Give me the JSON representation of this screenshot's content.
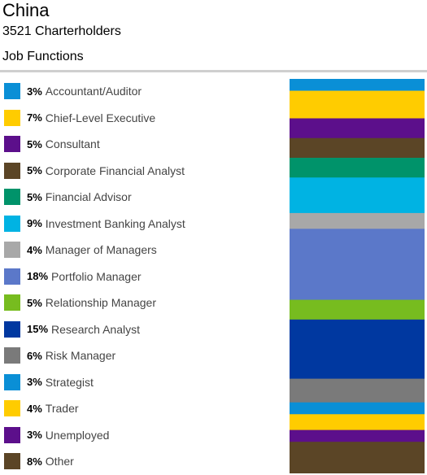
{
  "header": {
    "country": "China",
    "charterholders": "3521 Charterholders",
    "section": "Job Functions"
  },
  "chart_data": {
    "type": "bar",
    "orientation": "stacked-vertical",
    "unit": "%",
    "grid": false,
    "legend": "left",
    "categories": [
      "Accountant/Auditor",
      "Chief-Level Executive",
      "Consultant",
      "Corporate Financial Analyst",
      "Financial Advisor",
      "Investment Banking Analyst",
      "Manager of Managers",
      "Portfolio Manager",
      "Relationship Manager",
      "Research Analyst",
      "Risk Manager",
      "Strategist",
      "Trader",
      "Unemployed",
      "Other"
    ],
    "values": [
      3,
      7,
      5,
      5,
      5,
      9,
      4,
      18,
      5,
      15,
      6,
      3,
      4,
      3,
      8
    ],
    "value_labels": [
      "3%",
      "7%",
      "5%",
      "5%",
      "5%",
      "9%",
      "4%",
      "18%",
      "5%",
      "15%",
      "6%",
      "3%",
      "4%",
      "3%",
      "8%"
    ],
    "colors": [
      "#0a8fd6",
      "#ffcc00",
      "#5c0f8b",
      "#5b4526",
      "#00936a",
      "#00b3e3",
      "#a8a8a8",
      "#5b78c9",
      "#77bc1f",
      "#0038a0",
      "#7a7a7a",
      "#0a8fd6",
      "#ffcc00",
      "#5c0f8b",
      "#5b4526"
    ]
  }
}
